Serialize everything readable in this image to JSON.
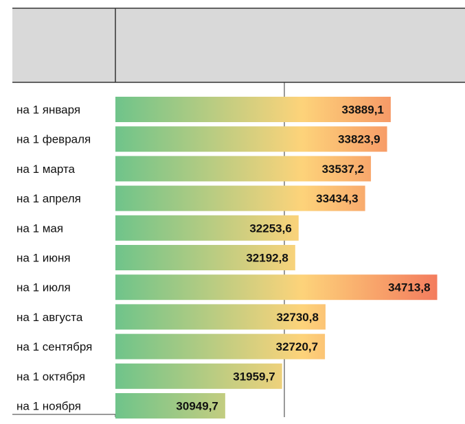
{
  "chart_data": {
    "type": "bar",
    "orientation": "horizontal",
    "title": "",
    "xlabel": "",
    "ylabel": "",
    "categories": [
      "на 1 января",
      "на 1 февраля",
      "на 1 марта",
      "на 1 апреля",
      "на 1 мая",
      "на 1 июня",
      "на 1 июля",
      "на 1 августа",
      "на 1 сентября",
      "на 1 октября",
      "на 1 ноября"
    ],
    "values": [
      33889.1,
      33823.9,
      33537.2,
      33434.3,
      32253.6,
      32192.8,
      34713.8,
      32730.8,
      32720.7,
      31959.7,
      30949.7
    ],
    "value_labels": [
      "33889,1",
      "33823,9",
      "33537,2",
      "33434,3",
      "32253,6",
      "32192,8",
      "34713,8",
      "32730,8",
      "32720,7",
      "31959,7",
      "30949,7"
    ],
    "xlim": [
      29000,
      35000
    ],
    "grid": true,
    "legend": "none",
    "colors": {
      "header_background": "#d9d9d9",
      "gradient_start": "#6fc48a",
      "gradient_mid": "#fdd37a",
      "gradient_end": "#f2715a",
      "line": "#333333"
    }
  }
}
